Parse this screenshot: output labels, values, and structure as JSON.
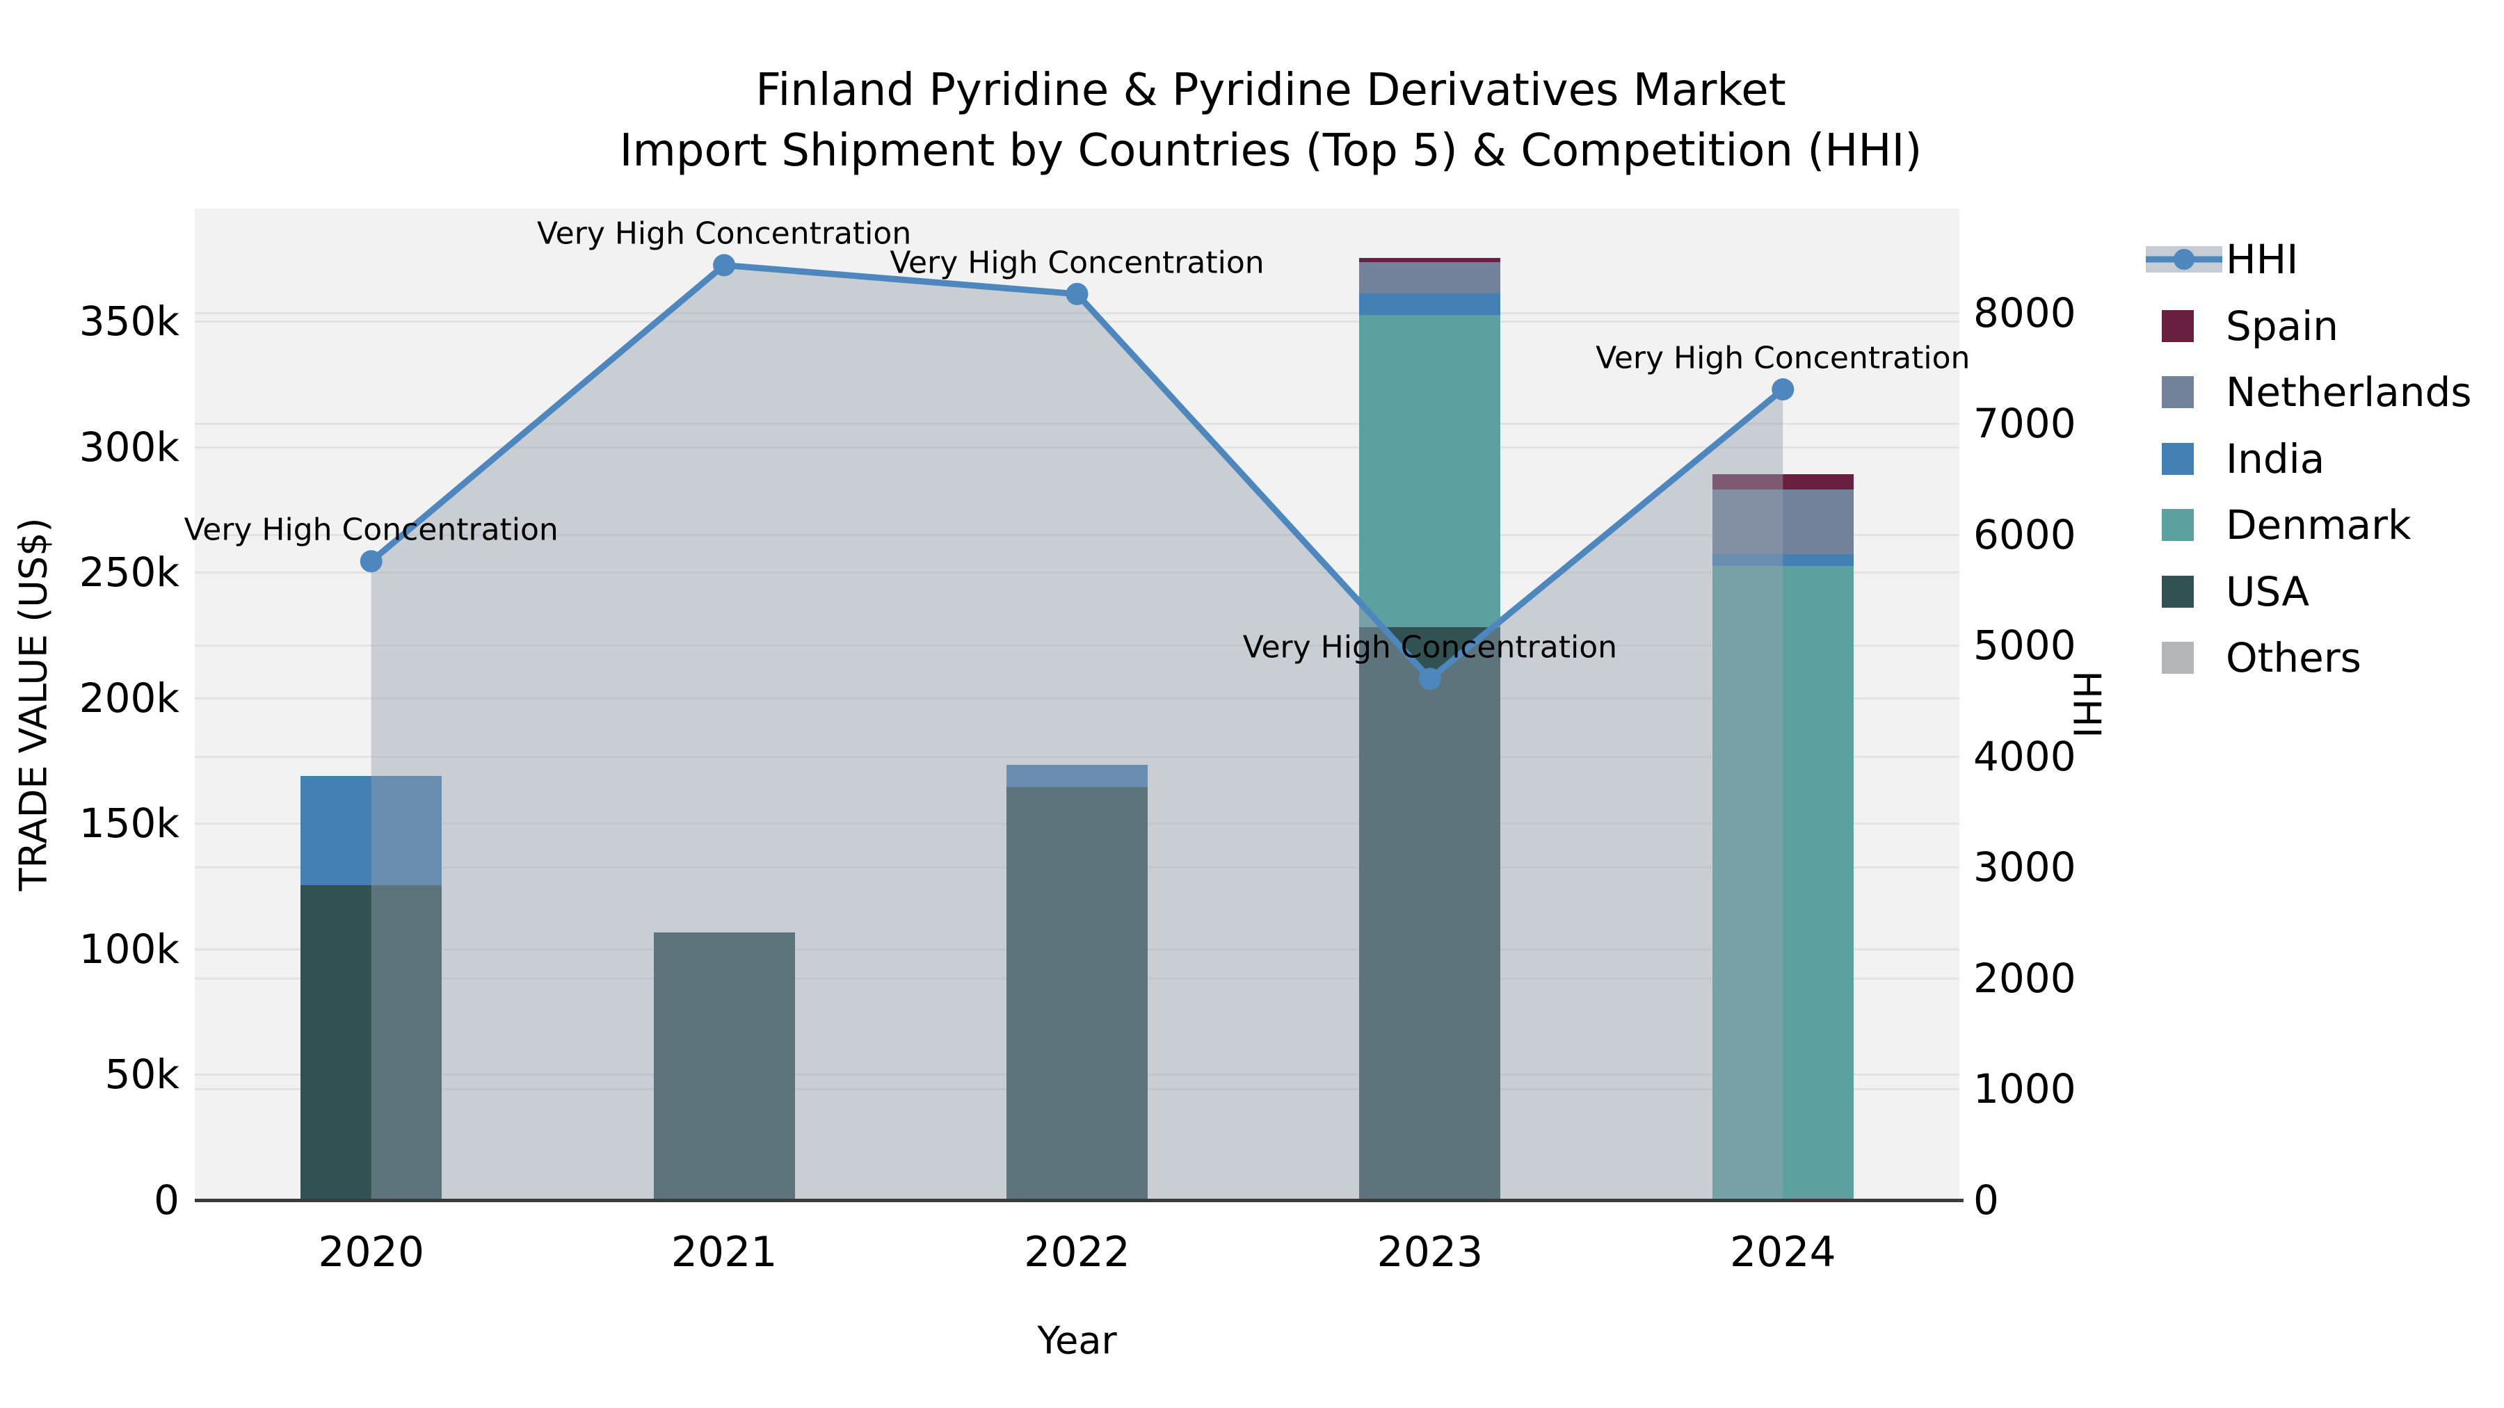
{
  "title": {
    "line1": "Finland Pyridine & Pyridine Derivatives Market",
    "line2": "Import Shipment by Countries (Top 5) & Competition (HHI)"
  },
  "axes": {
    "x_label": "Year",
    "y_left_label": "TRADE VALUE (US$)",
    "y_right_label": "HHI",
    "y_left_max": 395000,
    "y_right_max": 8940,
    "y_left_ticks": [
      {
        "value": 0,
        "label": "0"
      },
      {
        "value": 50000,
        "label": "50k"
      },
      {
        "value": 100000,
        "label": "100k"
      },
      {
        "value": 150000,
        "label": "150k"
      },
      {
        "value": 200000,
        "label": "200k"
      },
      {
        "value": 250000,
        "label": "250k"
      },
      {
        "value": 300000,
        "label": "300k"
      },
      {
        "value": 350000,
        "label": "350k"
      }
    ],
    "y_right_ticks": [
      {
        "value": 0,
        "label": "0"
      },
      {
        "value": 1000,
        "label": "1000"
      },
      {
        "value": 2000,
        "label": "2000"
      },
      {
        "value": 3000,
        "label": "3000"
      },
      {
        "value": 4000,
        "label": "4000"
      },
      {
        "value": 5000,
        "label": "5000"
      },
      {
        "value": 6000,
        "label": "6000"
      },
      {
        "value": 7000,
        "label": "7000"
      },
      {
        "value": 8000,
        "label": "8000"
      }
    ]
  },
  "chart_data": {
    "type": "combo-stacked-bar-line",
    "categories": [
      "2020",
      "2021",
      "2022",
      "2023",
      "2024"
    ],
    "series": [
      {
        "name": "USA",
        "color": "#315152",
        "values": [
          125500,
          106700,
          164400,
          228200,
          0
        ]
      },
      {
        "name": "Denmark",
        "color": "#5da0a0",
        "values": [
          0,
          0,
          0,
          124400,
          252500
        ]
      },
      {
        "name": "India",
        "color": "#4480b4",
        "values": [
          43400,
          0,
          8900,
          8700,
          4800
        ]
      },
      {
        "name": "Netherlands",
        "color": "#72829b",
        "values": [
          0,
          0,
          0,
          12300,
          25900
        ]
      },
      {
        "name": "Spain",
        "color": "#6b1f40",
        "values": [
          0,
          0,
          0,
          1700,
          6000
        ]
      },
      {
        "name": "Others",
        "color": "#b3b6b6",
        "values": [
          0,
          0,
          0,
          0,
          0
        ]
      }
    ],
    "line_series": {
      "name": "HHI",
      "axis": "right",
      "color": "#4e87bd",
      "fill_color": "rgba(150,160,175,0.45)",
      "values": [
        5760,
        8430,
        8170,
        4700,
        7310
      ]
    },
    "annotations": [
      {
        "category": "2020",
        "text": "Very High Concentration"
      },
      {
        "category": "2021",
        "text": "Very High Concentration"
      },
      {
        "category": "2022",
        "text": "Very High Concentration"
      },
      {
        "category": "2023",
        "text": "Very High Concentration"
      },
      {
        "category": "2024",
        "text": "Very High Concentration"
      }
    ],
    "ylabel": "TRADE VALUE (US$)",
    "ylabel_right": "HHI",
    "xlabel": "Year",
    "grid": true,
    "legend_position": "right"
  },
  "legend": {
    "items": [
      {
        "label": "HHI",
        "type": "line",
        "color": "#4e87bd"
      },
      {
        "label": "Spain",
        "type": "swatch",
        "color": "#6b1f40"
      },
      {
        "label": "Netherlands",
        "type": "swatch",
        "color": "#72829b"
      },
      {
        "label": "India",
        "type": "swatch",
        "color": "#4480b4"
      },
      {
        "label": "Denmark",
        "type": "swatch",
        "color": "#5da0a0"
      },
      {
        "label": "USA",
        "type": "swatch",
        "color": "#315152"
      },
      {
        "label": "Others",
        "type": "swatch",
        "color": "#b3b6b6"
      }
    ]
  }
}
